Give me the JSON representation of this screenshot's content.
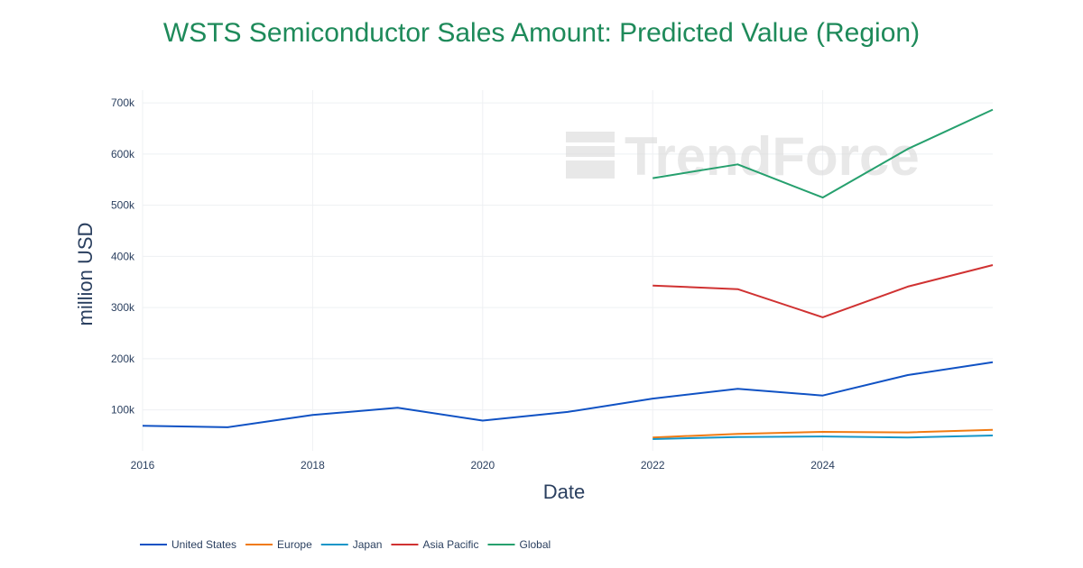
{
  "chart_data": {
    "type": "line",
    "title": "WSTS Semiconductor Sales Amount: Predicted Value (Region)",
    "xlabel": "Date",
    "ylabel": "million USD",
    "x_ticks": [
      "2016",
      "2018",
      "2020",
      "2022",
      "2024"
    ],
    "y_ticks": [
      "100k",
      "200k",
      "300k",
      "400k",
      "500k",
      "600k",
      "700k"
    ],
    "xlim": [
      2016,
      2026
    ],
    "ylim": [
      20000,
      725000
    ],
    "grid": true,
    "legend_position": "bottom-left",
    "watermark": "TrendForce",
    "series": [
      {
        "name": "United States",
        "color": "#1052c4",
        "x": [
          2016,
          2017,
          2018,
          2019,
          2020,
          2021,
          2022,
          2023,
          2024,
          2025,
          2026
        ],
        "y": [
          69000,
          66000,
          90000,
          104000,
          79000,
          96000,
          122000,
          141000,
          128000,
          168000,
          193000
        ]
      },
      {
        "name": "Europe",
        "color": "#f07a12",
        "x": [
          2022,
          2023,
          2024,
          2025,
          2026
        ],
        "y": [
          46000,
          53000,
          57000,
          56000,
          61000
        ]
      },
      {
        "name": "Japan",
        "color": "#1696c8",
        "x": [
          2022,
          2023,
          2024,
          2025,
          2026
        ],
        "y": [
          43000,
          47000,
          48000,
          46000,
          50000
        ]
      },
      {
        "name": "Asia Pacific",
        "color": "#d03232",
        "x": [
          2022,
          2023,
          2024,
          2025,
          2026
        ],
        "y": [
          343000,
          336000,
          281000,
          341000,
          383000
        ]
      },
      {
        "name": "Global",
        "color": "#26a06e",
        "x": [
          2022,
          2023,
          2024,
          2025,
          2026
        ],
        "y": [
          553000,
          580000,
          515000,
          610000,
          687000
        ]
      }
    ]
  }
}
